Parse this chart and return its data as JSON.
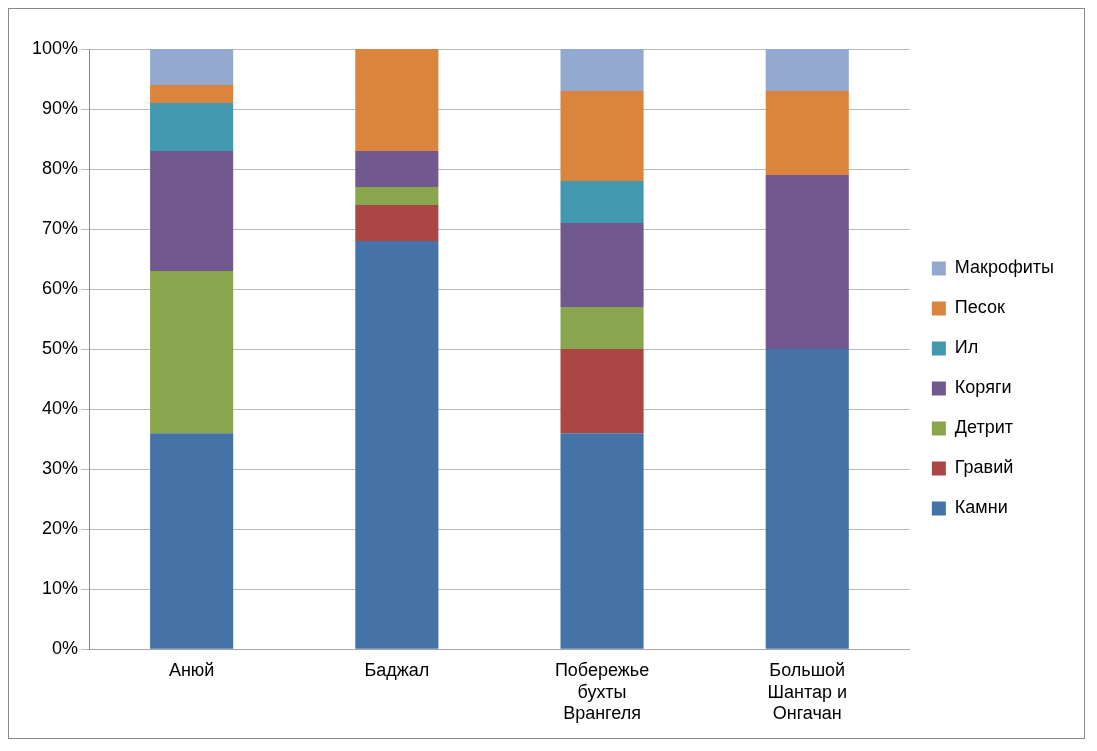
{
  "chart_data": {
    "type": "bar",
    "stacked": true,
    "categories": [
      "Анюй",
      "Баджал",
      "Побережье бухты Врангеля",
      "Большой Шантар и Онгачан"
    ],
    "series": [
      {
        "name": "Камни",
        "color": "#4572a7",
        "values": [
          36,
          68,
          36,
          50
        ]
      },
      {
        "name": "Гравий",
        "color": "#aa4643",
        "values": [
          0,
          6,
          14,
          0
        ]
      },
      {
        "name": "Детрит",
        "color": "#89a54e",
        "values": [
          27,
          3,
          7,
          0
        ]
      },
      {
        "name": "Коряги",
        "color": "#71588f",
        "values": [
          20,
          6,
          14,
          29
        ]
      },
      {
        "name": "Ил",
        "color": "#4198af",
        "values": [
          8,
          0,
          7,
          0
        ]
      },
      {
        "name": "Песок",
        "color": "#db843d",
        "values": [
          3,
          17,
          15,
          14
        ]
      },
      {
        "name": "Макрофиты",
        "color": "#93a9cf",
        "values": [
          6,
          0,
          7,
          7
        ]
      }
    ],
    "ylim": [
      0,
      100
    ],
    "yticks": [
      {
        "value": 0,
        "label": "0%"
      },
      {
        "value": 10,
        "label": "10%"
      },
      {
        "value": 20,
        "label": "20%"
      },
      {
        "value": 30,
        "label": "30%"
      },
      {
        "value": 40,
        "label": "40%"
      },
      {
        "value": 50,
        "label": "50%"
      },
      {
        "value": 60,
        "label": "60%"
      },
      {
        "value": 70,
        "label": "70%"
      },
      {
        "value": 80,
        "label": "80%"
      },
      {
        "value": 90,
        "label": "90%"
      },
      {
        "value": 100,
        "label": "100%"
      }
    ],
    "grid": "y",
    "legend": "right"
  }
}
